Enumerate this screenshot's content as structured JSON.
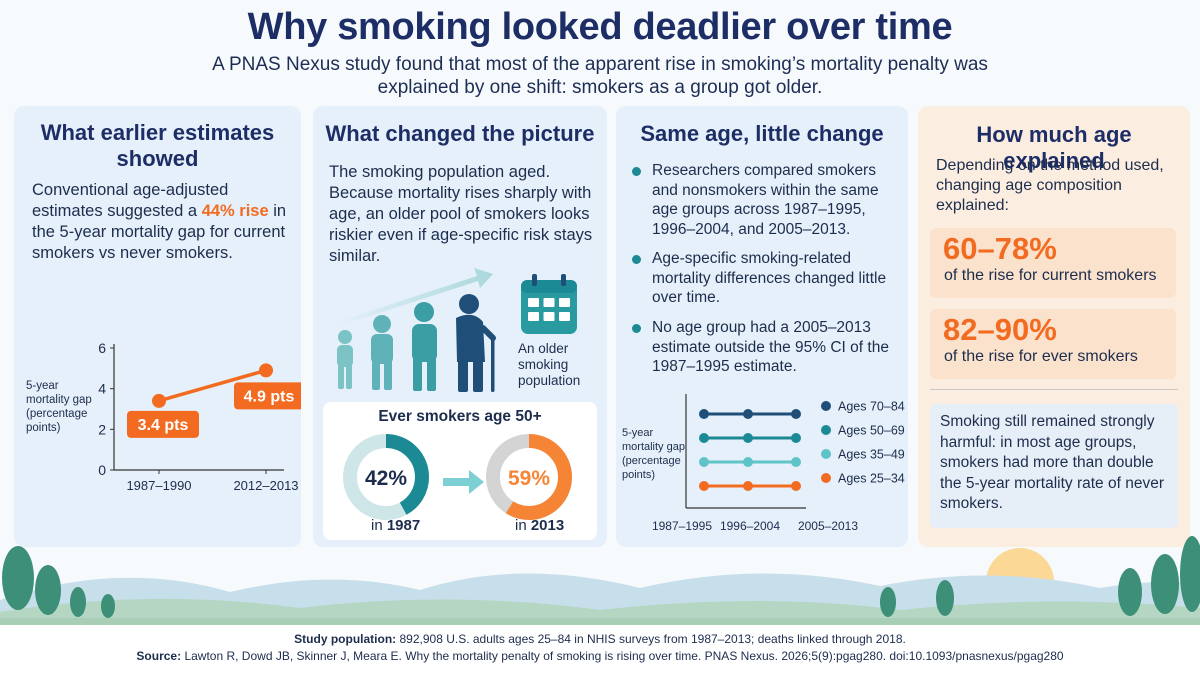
{
  "header": {
    "title": "Why smoking looked deadlier over time",
    "subtitle": "A PNAS Nexus study found that most of the apparent rise in smoking’s mortality penalty was explained by one shift: smokers as a group got older."
  },
  "panel1": {
    "title": "What earlier estimates showed",
    "text_before": "Conventional age-adjusted estimates suggested a ",
    "text_highlight": "44% rise",
    "text_after": " in the 5-year mortality gap for current smokers vs never smokers."
  },
  "panel2": {
    "title": "What changed the picture",
    "text": "The smoking population aged. Because mortality rises sharply with age, an older pool of smokers looks riskier even if age-specific risk stays similar.",
    "older_label": "An older smoking population",
    "ever_smokers_title": "Ever smokers age 50+",
    "donuts": [
      {
        "value": 42,
        "label": "42%",
        "caption_prefix": "in ",
        "caption_year": "1987",
        "color": "#1c8a95"
      },
      {
        "value": 59,
        "label": "59%",
        "caption_prefix": "in ",
        "caption_year": "2013",
        "color": "#f58535"
      }
    ]
  },
  "panel3": {
    "title": "Same age, little change",
    "bullets": [
      "Researchers compared smokers and nonsmokers within the same age groups across 1987–1995, 1996–2004, and 2005–2013.",
      "Age-specific smoking-related mortality differences changed little over time.",
      "No age group had a 2005–2013 estimate outside the 95% CI of the 1987–1995 estimate."
    ]
  },
  "panel4": {
    "title": "How much age explained",
    "intro": "Depending on the method used, changing age composition explained:",
    "stats": [
      {
        "value": "60–78%",
        "label": "of the rise for current smokers"
      },
      {
        "value": "82–90%",
        "label": "of the rise for ever smokers"
      }
    ],
    "conclusion": "Smoking still remained strongly harmful: in most age groups, smokers had more than double the 5-year mortality rate of never smokers."
  },
  "footer": {
    "population_label": "Study population:",
    "population_text": " 892,908 U.S. adults ages 25–84 in NHIS surveys from 1987–2013; deaths linked through 2018.",
    "source_label": "Source:",
    "source_text": " Lawton R, Dowd JB, Skinner J, Meara E. Why the mortality penalty of smoking is rising over time. PNAS Nexus. 2026;5(9):pgag280. doi:10.1093/pnasnexus/pgag280"
  },
  "chart_data": [
    {
      "type": "line",
      "ylabel": "5-year mortality gap (percentage points)",
      "categories": [
        "1987–1990",
        "2012–2013"
      ],
      "values": [
        3.4,
        4.9
      ],
      "data_labels": [
        "3.4 pts",
        "4.9 pts"
      ],
      "yticks": [
        0,
        2,
        4,
        6
      ],
      "ylim": [
        0,
        6
      ],
      "color": "#f26b21"
    },
    {
      "type": "line",
      "ylabel": "5-year mortality gap (percentage points)",
      "categories": [
        "1987–1995",
        "1996–2004",
        "2005–2013"
      ],
      "legend_placement": "right",
      "series": [
        {
          "name": "Ages 70–84",
          "level": 4,
          "color": "#1f4e79"
        },
        {
          "name": "Ages 50–69",
          "level": 3,
          "color": "#1c8a95"
        },
        {
          "name": "Ages 35–49",
          "level": 2,
          "color": "#5fc4c8"
        },
        {
          "name": "Ages 25–34",
          "level": 1,
          "color": "#f26b21"
        }
      ]
    }
  ]
}
